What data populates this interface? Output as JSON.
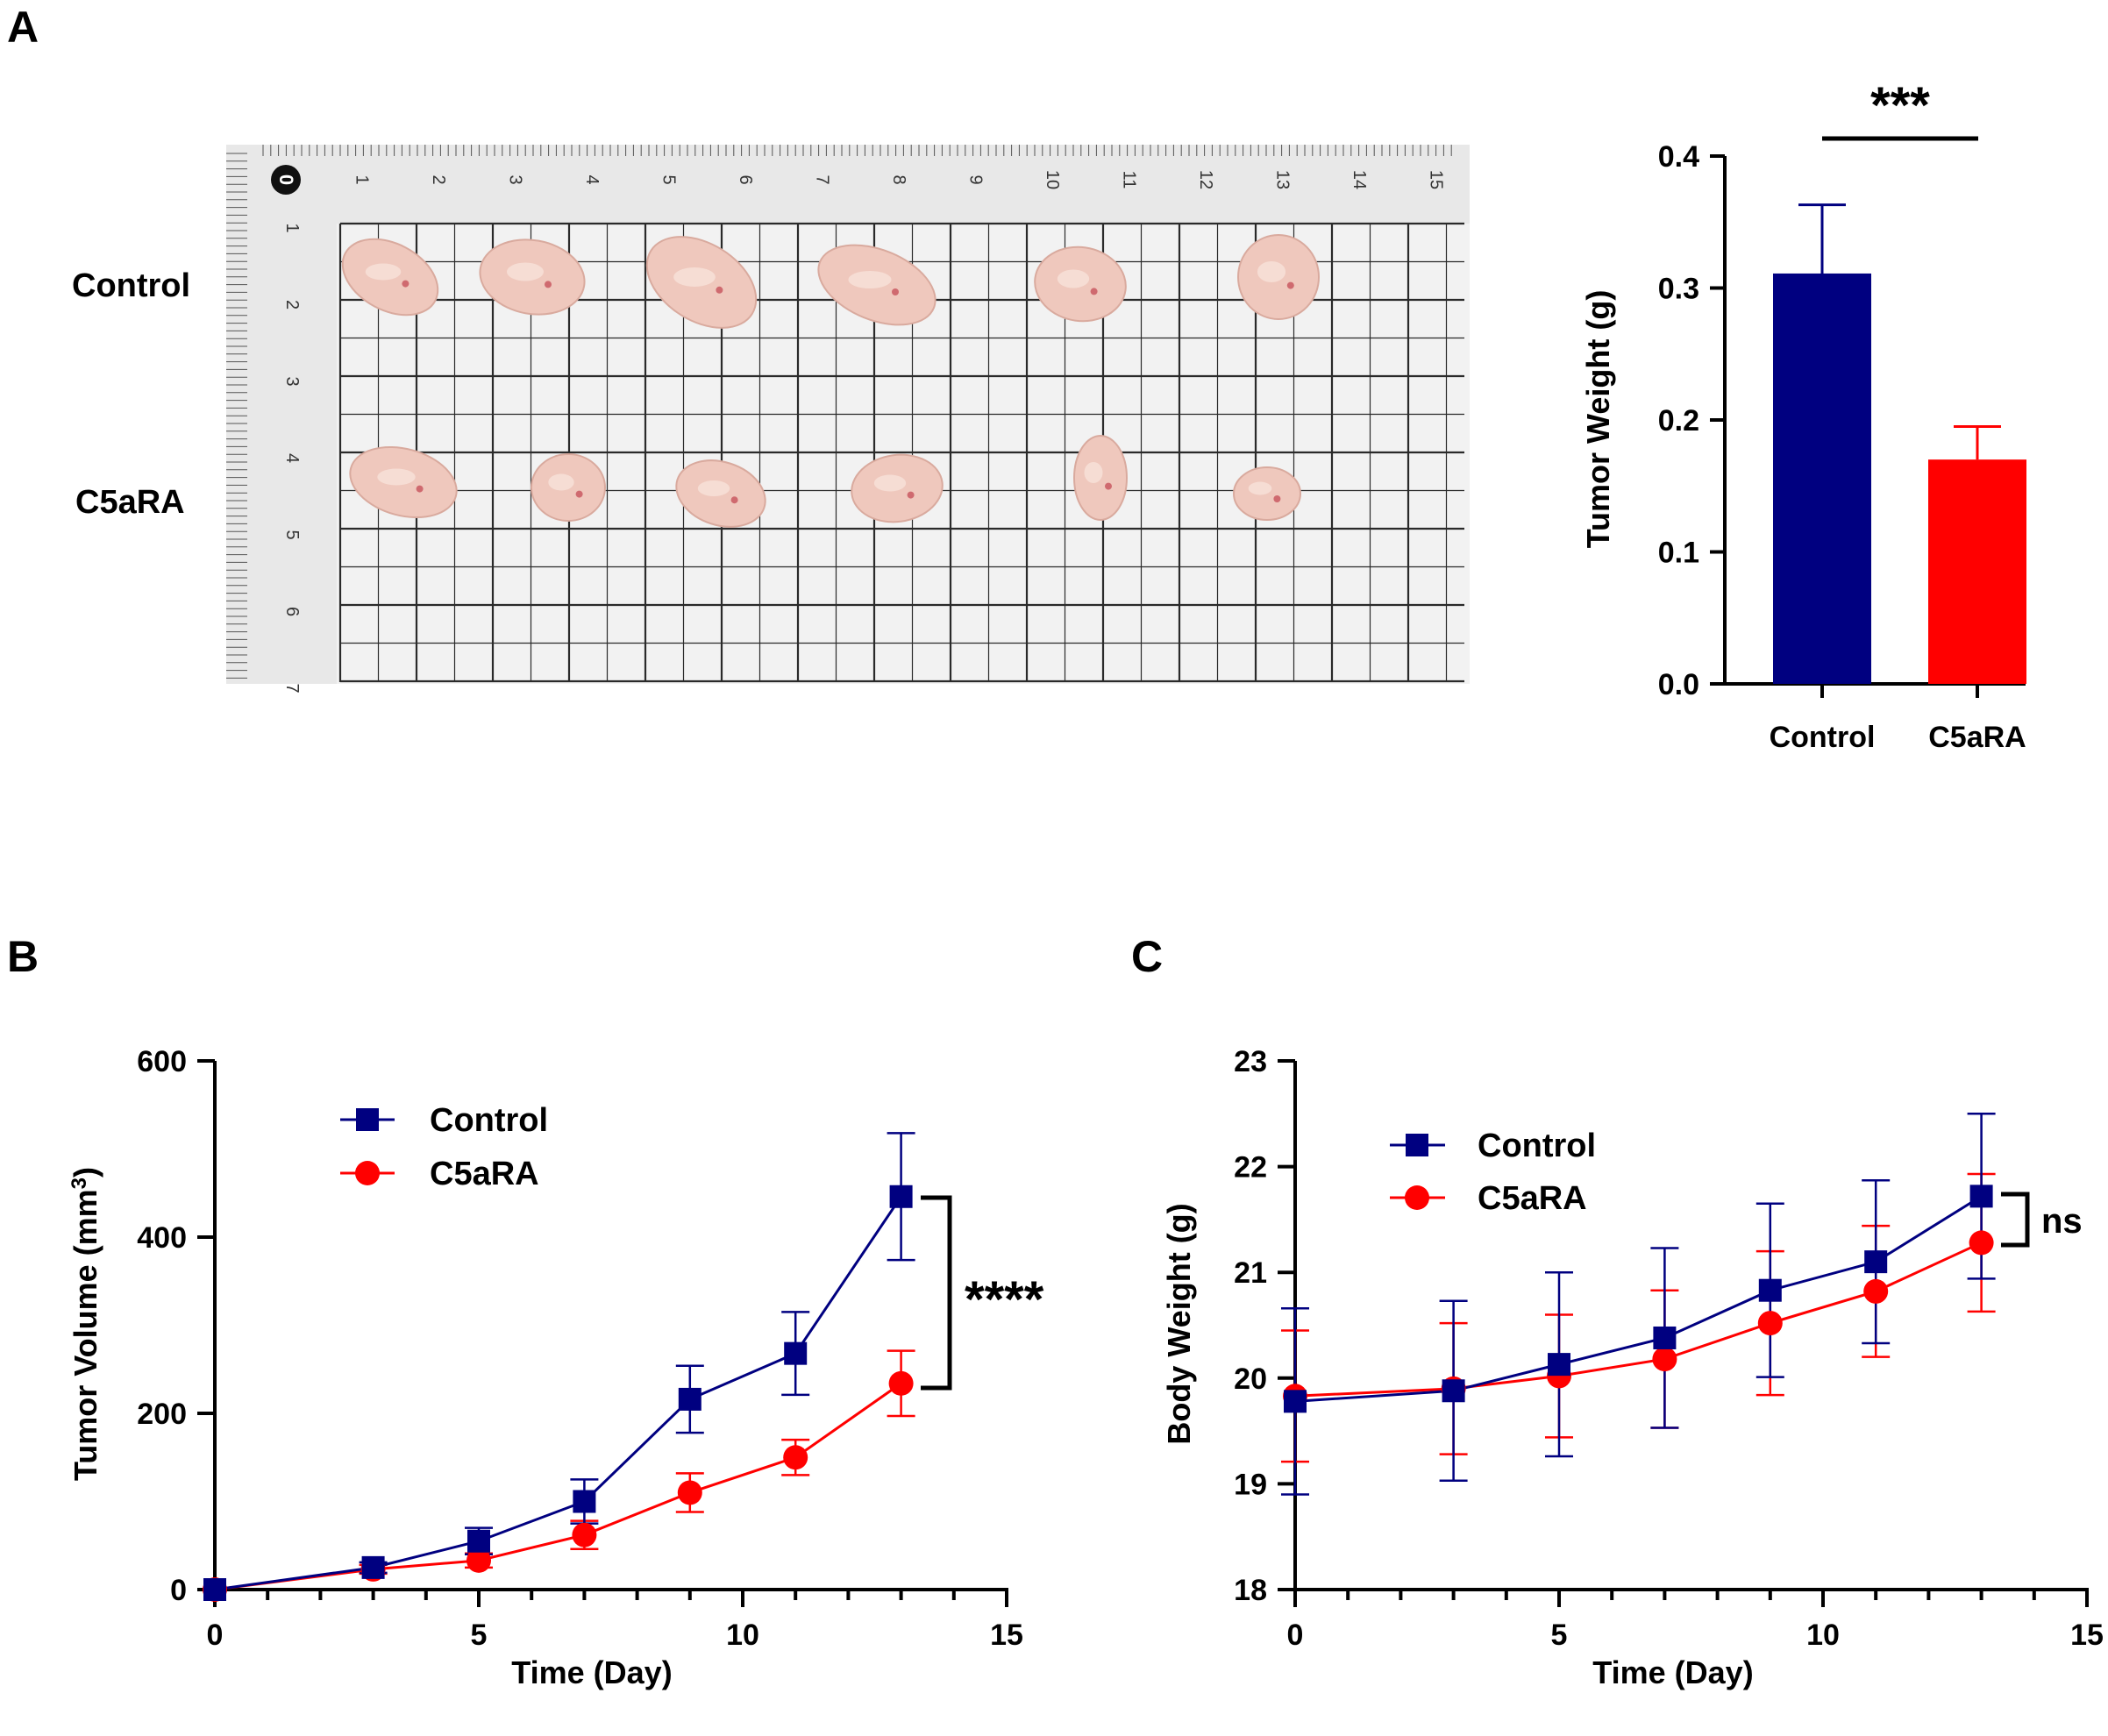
{
  "colors": {
    "control": "#000080",
    "c5ara": "#ff0000",
    "axis": "#000000",
    "photo_background": "#f2f2f2",
    "grid_line": "#2a2a2a",
    "ruler": "#e8e8e8",
    "tumor": "#efc8bd",
    "tumor_spot": "#c2424f"
  },
  "panels": {
    "a": {
      "letter": "A"
    },
    "b": {
      "letter": "B"
    },
    "c": {
      "letter": "C"
    }
  },
  "photo": {
    "row_labels": [
      "Control",
      "C5aRA"
    ],
    "ruler_top_numbers": [
      "0",
      "1",
      "2",
      "3",
      "4",
      "5",
      "6",
      "7",
      "8",
      "9",
      "10",
      "11",
      "12",
      "13",
      "14",
      "15"
    ],
    "ruler_left_numbers": [
      "1",
      "2",
      "3",
      "4",
      "5",
      "6",
      "7"
    ]
  },
  "chart_data": [
    {
      "id": "tumor-weight",
      "type": "bar",
      "title": "",
      "xlabel": "",
      "ylabel": "Tumor Weight (g)",
      "categories": [
        "Control",
        "C5aRA"
      ],
      "values": [
        0.311,
        0.17
      ],
      "errors": [
        0.052,
        0.025
      ],
      "bar_colors": [
        "#000080",
        "#ff0000"
      ],
      "ylim": [
        0,
        0.4
      ],
      "yticks": [
        0.0,
        0.1,
        0.2,
        0.3,
        0.4
      ],
      "ytick_labels": [
        "0.0",
        "0.1",
        "0.2",
        "0.3",
        "0.4"
      ],
      "significance": "***"
    },
    {
      "id": "tumor-volume",
      "type": "line",
      "title": "",
      "xlabel": "Time (Day)",
      "ylabel": "Tumor Volume (mm³)",
      "ylabel_main": "Tumor Volume (mm",
      "ylabel_sup": "3",
      "ylabel_end": ")",
      "x": [
        0,
        3,
        5,
        7,
        9,
        11,
        13
      ],
      "xlim": [
        0,
        15
      ],
      "ylim": [
        0,
        600
      ],
      "xticks": [
        0,
        5,
        10,
        15
      ],
      "yticks": [
        0,
        200,
        400,
        600
      ],
      "series": [
        {
          "name": "Control",
          "marker": "square",
          "color": "#000080",
          "values": [
            0,
            25,
            55,
            100,
            216,
            268,
            446
          ],
          "errors": [
            0,
            6,
            15,
            25,
            38,
            47,
            72
          ]
        },
        {
          "name": "C5aRA",
          "marker": "circle",
          "color": "#ff0000",
          "values": [
            0,
            23,
            33,
            62,
            110,
            150,
            234
          ],
          "errors": [
            0,
            5,
            8,
            16,
            22,
            20,
            37
          ]
        }
      ],
      "significance": "****",
      "legend": "top-left"
    },
    {
      "id": "body-weight",
      "type": "line",
      "title": "",
      "xlabel": "Time (Day)",
      "ylabel": "Body Weight (g)",
      "x": [
        0,
        3,
        5,
        7,
        9,
        11,
        13
      ],
      "xlim": [
        0,
        15
      ],
      "ylim": [
        18,
        23
      ],
      "xticks": [
        0,
        5,
        10,
        15
      ],
      "yticks": [
        18,
        19,
        20,
        21,
        22,
        23
      ],
      "series": [
        {
          "name": "Control",
          "marker": "square",
          "color": "#000080",
          "values": [
            19.78,
            19.88,
            20.13,
            20.38,
            20.83,
            21.1,
            21.72
          ],
          "errors": [
            0.88,
            0.85,
            0.87,
            0.85,
            0.82,
            0.77,
            0.78
          ]
        },
        {
          "name": "C5aRA",
          "marker": "circle",
          "color": "#ff0000",
          "values": [
            19.83,
            19.9,
            20.02,
            20.18,
            20.52,
            20.82,
            21.28
          ],
          "errors": [
            0.62,
            0.62,
            0.58,
            0.65,
            0.68,
            0.62,
            0.65
          ]
        }
      ],
      "significance": "ns",
      "legend": "top-left"
    }
  ]
}
